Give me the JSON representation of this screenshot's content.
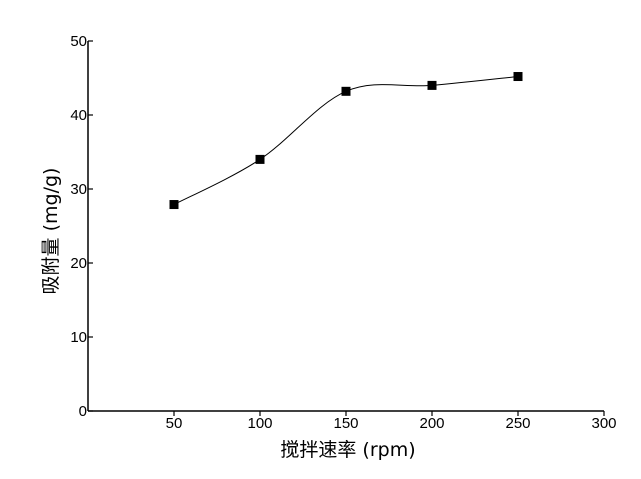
{
  "chart_data": {
    "type": "line",
    "title": "",
    "xlabel": "搅拌速率 (rpm)",
    "ylabel": "吸附量 (mg/g)",
    "xlim": [
      0,
      300
    ],
    "ylim": [
      0,
      50
    ],
    "x_ticks": [
      50,
      100,
      150,
      200,
      250,
      300
    ],
    "y_ticks": [
      0,
      10,
      20,
      30,
      40,
      50
    ],
    "grid": false,
    "legend": "none",
    "series": [
      {
        "x": [
          50,
          100,
          150,
          200,
          250
        ],
        "y": [
          27.9,
          34.0,
          43.2,
          44.0,
          45.2
        ],
        "marker": "square",
        "line": "smooth",
        "color": "#000000"
      }
    ]
  }
}
